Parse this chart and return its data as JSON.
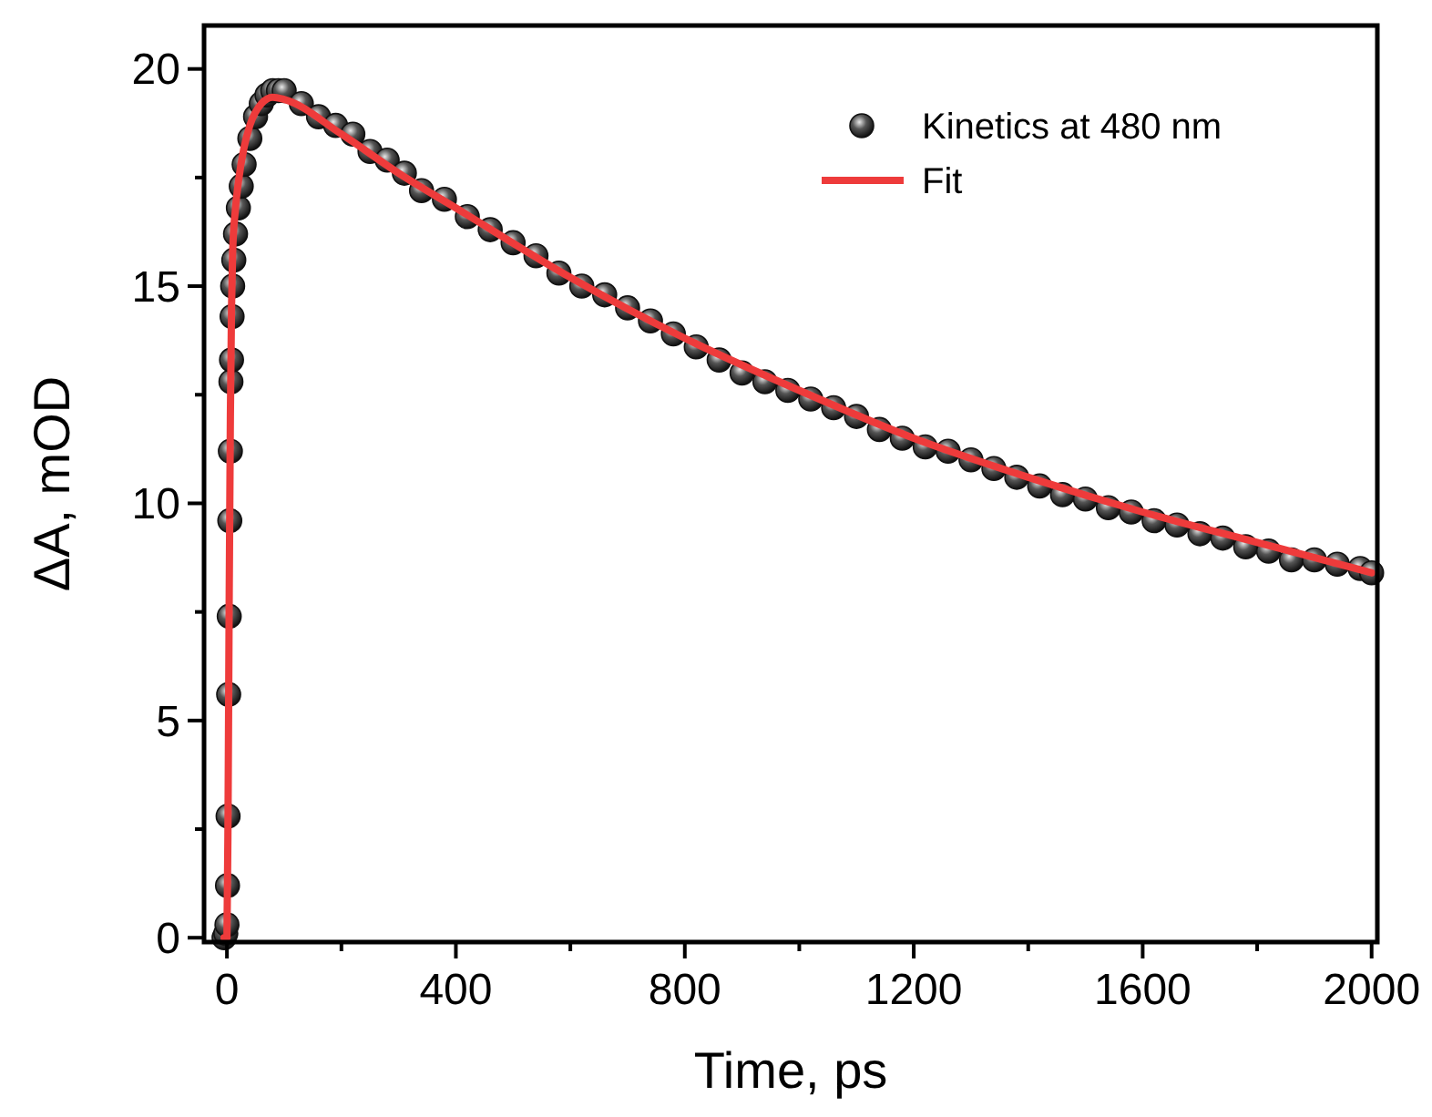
{
  "chart_data": {
    "type": "scatter",
    "xlabel": "Time, ps",
    "ylabel": "ΔA, mOD",
    "xlim": [
      -40,
      2010
    ],
    "ylim": [
      -0.1,
      21
    ],
    "xticks": [
      0,
      {
        "value": 200,
        "label": null
      },
      400,
      {
        "value": 600,
        "label": null
      },
      800,
      {
        "value": 1000,
        "label": null
      },
      1200,
      {
        "value": 1400,
        "label": null
      },
      1600,
      {
        "value": 1800,
        "label": null
      },
      2000
    ],
    "yticks": [
      0,
      {
        "value": 2.5,
        "label": null
      },
      5,
      {
        "value": 7.5,
        "label": null
      },
      10,
      {
        "value": 12.5,
        "label": null
      },
      15,
      {
        "value": 17.5,
        "label": null
      },
      20
    ],
    "grid": false,
    "legend": "top right",
    "series": [
      {
        "name": "Kinetics at 480 nm",
        "marker": "circle",
        "color": "#111111",
        "x": [
          -5,
          -2,
          0,
          1,
          2,
          3,
          4,
          5,
          6,
          7,
          8,
          9,
          10,
          12,
          15,
          20,
          25,
          30,
          40,
          50,
          60,
          70,
          80,
          90,
          100,
          130,
          160,
          190,
          220,
          250,
          280,
          310,
          340,
          380,
          420,
          460,
          500,
          540,
          580,
          620,
          660,
          700,
          740,
          780,
          820,
          860,
          900,
          940,
          980,
          1020,
          1060,
          1100,
          1140,
          1180,
          1220,
          1260,
          1300,
          1340,
          1380,
          1420,
          1460,
          1500,
          1540,
          1580,
          1620,
          1660,
          1700,
          1740,
          1780,
          1820,
          1860,
          1900,
          1940,
          1980,
          2000
        ],
        "values": [
          0,
          0.1,
          0.3,
          1.2,
          2.8,
          5.6,
          7.4,
          9.6,
          11.2,
          12.8,
          13.3,
          14.3,
          15.0,
          15.6,
          16.2,
          16.8,
          17.3,
          17.8,
          18.4,
          18.9,
          19.2,
          19.4,
          19.5,
          19.5,
          19.5,
          19.2,
          18.9,
          18.7,
          18.5,
          18.1,
          17.9,
          17.6,
          17.2,
          17.0,
          16.6,
          16.3,
          16.0,
          15.7,
          15.3,
          15.0,
          14.8,
          14.5,
          14.2,
          13.9,
          13.6,
          13.3,
          13.0,
          12.8,
          12.6,
          12.4,
          12.2,
          12.0,
          11.7,
          11.5,
          11.3,
          11.2,
          11.0,
          10.8,
          10.6,
          10.4,
          10.2,
          10.1,
          9.9,
          9.8,
          9.6,
          9.5,
          9.3,
          9.2,
          9.0,
          8.9,
          8.7,
          8.7,
          8.6,
          8.5,
          8.4
        ]
      },
      {
        "name": "Fit",
        "type": "line",
        "line_style": "solid",
        "color": "#ee3b3b",
        "x": [
          -5,
          0,
          2,
          4,
          6,
          8,
          10,
          15,
          20,
          30,
          40,
          60,
          80,
          100,
          200,
          300,
          400,
          600,
          800,
          1000,
          1200,
          1400,
          1600,
          1800,
          2000
        ],
        "values": [
          0,
          0,
          3,
          8,
          12,
          14.5,
          15.8,
          16.8,
          17.4,
          18.2,
          18.7,
          19.2,
          19.35,
          19.3,
          18.5,
          17.6,
          16.8,
          15.2,
          13.8,
          12.6,
          11.5,
          10.6,
          9.8,
          9.1,
          8.4
        ]
      }
    ]
  }
}
